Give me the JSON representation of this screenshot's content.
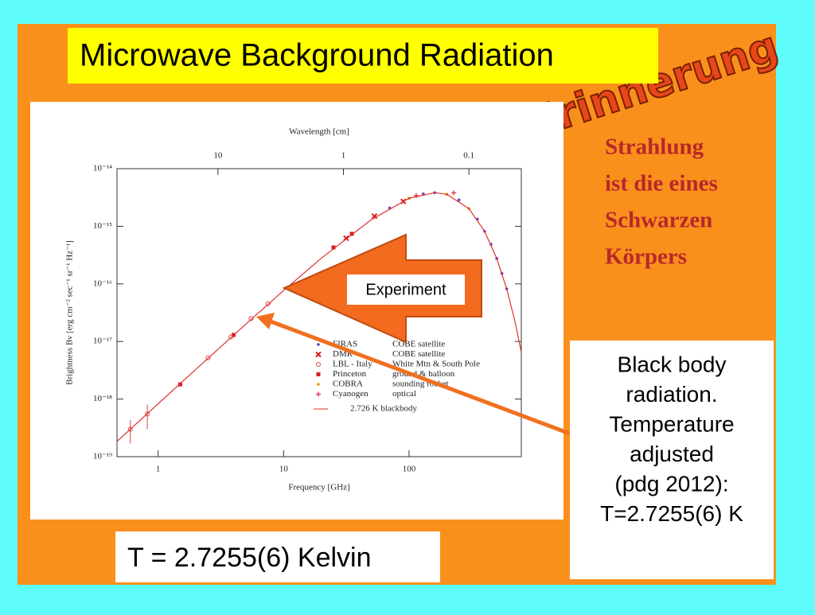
{
  "title": "Microwave Background Radiation",
  "stamp": "Erinnerung",
  "statement": [
    "Strahlung",
    "ist die eines",
    "Schwarzen",
    "Körpers"
  ],
  "callout": "Experiment",
  "note": [
    "Black body",
    "radiation.",
    "Temperature",
    "adjusted",
    "(pdg 2012):",
    "T=2.7255(6) K"
  ],
  "result": "T = 2.7255(6)  Kelvin",
  "chart_data": {
    "type": "scatter",
    "x_label": "Frequency [GHz]",
    "x2_label": "Wavelength [cm]",
    "y_label": "Brightness Bν [erg cm⁻² sec⁻¹ sr⁻¹ Hz⁻¹]",
    "xscale": "log",
    "yscale": "log",
    "xlim": [
      0.47,
      785
    ],
    "x2lim": [
      63.8,
      0.0382
    ],
    "ylim": [
      1e-19,
      1e-14
    ],
    "xticks": [
      1,
      10,
      100
    ],
    "x2ticks": [
      10,
      1,
      0.1
    ],
    "yticks": [
      {
        "value": 1e-19,
        "label": "10⁻¹⁹"
      },
      {
        "value": 1e-18,
        "label": "10⁻¹⁸"
      },
      {
        "value": 1e-17,
        "label": "10⁻¹⁷"
      },
      {
        "value": 1e-16,
        "label": "10⁻¹⁶"
      },
      {
        "value": 1e-15,
        "label": "10⁻¹⁵"
      },
      {
        "value": 1e-14,
        "label": "10⁻¹⁴"
      }
    ],
    "series": [
      {
        "name": "FIRAS",
        "source": "COBE satellite",
        "color": "#6a3fc8",
        "marker": "dot",
        "x": [
          70,
          100,
          130,
          160,
          200,
          250,
          300,
          350,
          400,
          450,
          500,
          550,
          600
        ],
        "values": [
          2.08e-15,
          3.06e-15,
          3.65e-15,
          3.83e-15,
          3.59e-15,
          2.86e-15,
          2.03e-15,
          1.33e-15,
          8.2e-16,
          4.87e-16,
          2.76e-16,
          1.52e-16,
          8.2e-17
        ]
      },
      {
        "name": "DMR",
        "source": "COBE satellite",
        "color": "#d42020",
        "marker": "x",
        "x": [
          31.5,
          53,
          90
        ],
        "values": [
          6.2e-16,
          1.5e-15,
          2.7e-15
        ]
      },
      {
        "name": "LBL - Italy",
        "source": "White Mtn & South Pole",
        "color": "#e04040",
        "marker": "circle",
        "x": [
          0.6,
          0.82,
          2.5,
          3.8,
          5.5,
          7.5
        ],
        "values": [
          3e-19,
          5.5e-19,
          5.2e-18,
          1.2e-17,
          2.5e-17,
          4.5e-17
        ],
        "errors": [
          1.3e-19,
          2.5e-19,
          null,
          null,
          null,
          null
        ]
      },
      {
        "name": "Princeton",
        "source": "ground & balloon",
        "color": "#d42020",
        "marker": "square",
        "x": [
          1.5,
          4,
          25,
          35
        ],
        "values": [
          1.8e-18,
          1.3e-17,
          4.3e-16,
          7.4e-16
        ]
      },
      {
        "name": "COBRA",
        "source": "sounding rocket",
        "color": "#e0a000",
        "marker": "dot",
        "x": [
          100,
          200,
          300
        ],
        "values": [
          3.06e-15,
          3.59e-15,
          2.03e-15
        ]
      },
      {
        "name": "Cyanogen",
        "source": "optical",
        "color": "#e04060",
        "marker": "plus",
        "x": [
          114,
          227
        ],
        "values": [
          3.4e-15,
          3.8e-15
        ]
      },
      {
        "name": "2.726 K blackbody",
        "color": "#e03030",
        "marker": "line",
        "x": [
          0.47,
          1,
          2,
          5,
          10,
          20,
          50,
          100,
          160,
          200,
          300,
          400,
          500,
          600,
          700,
          785
        ],
        "values": [
          1.84e-19,
          8.29e-19,
          3.29e-18,
          2e-17,
          7.65e-17,
          2.79e-16,
          1.3e-15,
          3.06e-15,
          3.83e-15,
          3.59e-15,
          2.03e-15,
          8.2e-16,
          2.76e-16,
          8.2e-17,
          2.2e-17,
          6.5e-18
        ]
      }
    ]
  }
}
